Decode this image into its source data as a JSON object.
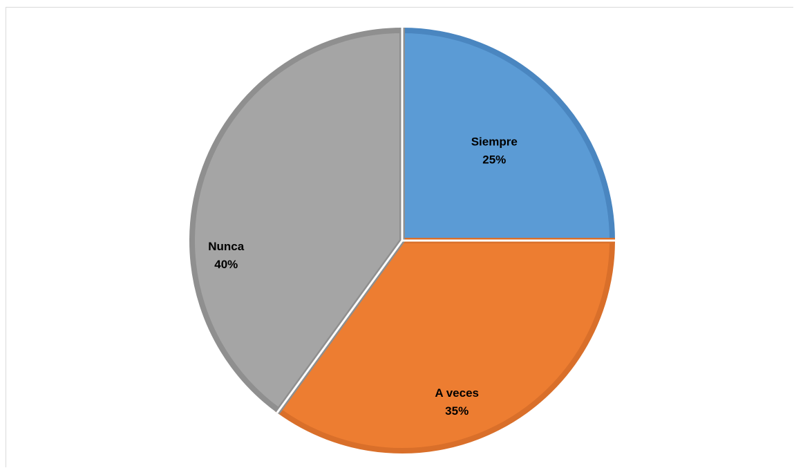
{
  "chart_data": {
    "type": "pie",
    "title": "",
    "categories": [
      "Siempre",
      "A veces",
      "Nunca"
    ],
    "values": [
      25,
      35,
      40
    ],
    "labels": [
      "25%",
      "35%",
      "40%"
    ],
    "colors": [
      "#5b9bd5",
      "#ed7d31",
      "#a5a5a5"
    ],
    "border_colors": [
      "#4a86c0",
      "#d96f2a",
      "#8f8f8f"
    ],
    "start_angle_deg": 0,
    "direction": "clockwise",
    "legend": "none"
  }
}
